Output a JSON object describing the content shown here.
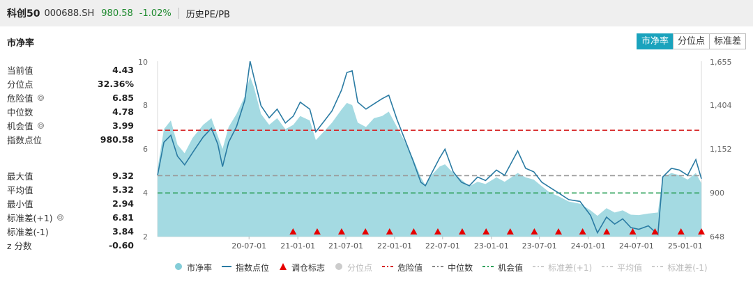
{
  "header": {
    "name": "科创50",
    "code": "000688.SH",
    "price": "980.58",
    "change": "-1.02%",
    "tab": "历史PE/PB"
  },
  "metric_title": "市净率",
  "tabs": [
    {
      "label": "市净率",
      "active": true
    },
    {
      "label": "分位点",
      "active": false
    },
    {
      "label": "标准差",
      "active": false
    }
  ],
  "stats_top": [
    {
      "label": "当前值",
      "value": "4.43",
      "gear": false
    },
    {
      "label": "分位点",
      "value": "32.36%",
      "gear": false
    },
    {
      "label": "危险值",
      "value": "6.85",
      "gear": true
    },
    {
      "label": "中位数",
      "value": "4.78",
      "gear": false
    },
    {
      "label": "机会值",
      "value": "3.99",
      "gear": true
    },
    {
      "label": "指数点位",
      "value": "980.58",
      "gear": false
    }
  ],
  "stats_bottom": [
    {
      "label": "最大值",
      "value": "9.32",
      "gear": false
    },
    {
      "label": "平均值",
      "value": "5.32",
      "gear": false
    },
    {
      "label": "最小值",
      "value": "2.94",
      "gear": false
    },
    {
      "label": "标准差(+1)",
      "value": "6.81",
      "gear": true
    },
    {
      "label": "标准差(-1)",
      "value": "3.84",
      "gear": false
    },
    {
      "label": "z 分数",
      "value": "-0.60",
      "gear": false
    }
  ],
  "legend": [
    {
      "label": "市净率",
      "type": "dot",
      "color": "#84cdd8",
      "dim": false
    },
    {
      "label": "指数点位",
      "type": "line",
      "color": "#2a7ba3",
      "dim": false
    },
    {
      "label": "调仓标志",
      "type": "triangle",
      "color": "#e60000",
      "dim": false
    },
    {
      "label": "分位点",
      "type": "dot",
      "color": "#cccccc",
      "dim": true
    },
    {
      "label": "危险值",
      "type": "dash",
      "color": "#d62728",
      "dim": false
    },
    {
      "label": "中位数",
      "type": "dash",
      "color": "#888888",
      "dim": false
    },
    {
      "label": "机会值",
      "type": "dash",
      "color": "#2ca05a",
      "dim": false
    },
    {
      "label": "标准差(+1)",
      "type": "dash",
      "color": "#cccccc",
      "dim": true
    },
    {
      "label": "平均值",
      "type": "dash",
      "color": "#cccccc",
      "dim": true
    },
    {
      "label": "标准差(-1)",
      "type": "dash",
      "color": "#cccccc",
      "dim": true
    }
  ],
  "chart_data": {
    "type": "area",
    "x_range": [
      "2019-07-22",
      "2025-03-03"
    ],
    "x_ticks": [
      "20-07-01",
      "21-01-01",
      "21-07-01",
      "22-01-01",
      "22-07-01",
      "23-01-01",
      "23-07-01",
      "24-01-01",
      "24-07-01",
      "25-01-01"
    ],
    "left_axis": {
      "ticks": [
        "2",
        "4",
        "6",
        "8",
        "10"
      ],
      "range": [
        2,
        10
      ]
    },
    "right_axis": {
      "ticks": [
        "648",
        "900",
        "1,152",
        "1,404",
        "1,655"
      ],
      "range": [
        648,
        1655
      ]
    },
    "reference_lines": {
      "danger": 6.85,
      "median": 4.78,
      "opportunity": 3.99
    },
    "series": [
      {
        "name": "市净率",
        "axis": "left",
        "points": [
          [
            "2019-07-22",
            5.1
          ],
          [
            "2019-08-15",
            6.9
          ],
          [
            "2019-09-10",
            7.3
          ],
          [
            "2019-10-05",
            6.2
          ],
          [
            "2019-11-01",
            5.8
          ],
          [
            "2019-12-01",
            6.5
          ],
          [
            "2020-01-10",
            7.1
          ],
          [
            "2020-02-10",
            7.4
          ],
          [
            "2020-03-05",
            6.6
          ],
          [
            "2020-03-23",
            6.0
          ],
          [
            "2020-04-15",
            7.0
          ],
          [
            "2020-05-15",
            7.6
          ],
          [
            "2020-06-15",
            8.4
          ],
          [
            "2020-07-05",
            9.3
          ],
          [
            "2020-07-20",
            8.8
          ],
          [
            "2020-08-15",
            7.6
          ],
          [
            "2020-09-15",
            7.1
          ],
          [
            "2020-10-15",
            7.4
          ],
          [
            "2020-11-15",
            6.9
          ],
          [
            "2020-12-15",
            7.1
          ],
          [
            "2021-01-10",
            7.5
          ],
          [
            "2021-02-15",
            7.3
          ],
          [
            "2021-03-10",
            6.4
          ],
          [
            "2021-04-10",
            6.8
          ],
          [
            "2021-05-10",
            7.2
          ],
          [
            "2021-06-15",
            7.8
          ],
          [
            "2021-07-05",
            8.1
          ],
          [
            "2021-07-25",
            8.0
          ],
          [
            "2021-08-15",
            7.2
          ],
          [
            "2021-09-15",
            7.0
          ],
          [
            "2021-10-15",
            7.4
          ],
          [
            "2021-11-15",
            7.5
          ],
          [
            "2021-12-10",
            7.7
          ],
          [
            "2022-01-10",
            7.0
          ],
          [
            "2022-02-10",
            6.3
          ],
          [
            "2022-03-10",
            5.6
          ],
          [
            "2022-04-10",
            4.7
          ],
          [
            "2022-04-27",
            4.35
          ],
          [
            "2022-05-20",
            4.8
          ],
          [
            "2022-06-20",
            5.2
          ],
          [
            "2022-07-10",
            5.3
          ],
          [
            "2022-08-10",
            4.9
          ],
          [
            "2022-09-10",
            4.6
          ],
          [
            "2022-10-10",
            4.3
          ],
          [
            "2022-11-10",
            4.5
          ],
          [
            "2022-12-10",
            4.4
          ],
          [
            "2023-01-20",
            4.7
          ],
          [
            "2023-02-20",
            4.5
          ],
          [
            "2023-04-10",
            4.9
          ],
          [
            "2023-05-10",
            4.7
          ],
          [
            "2023-06-10",
            4.6
          ],
          [
            "2023-07-10",
            4.3
          ],
          [
            "2023-08-10",
            4.0
          ],
          [
            "2023-09-10",
            3.85
          ],
          [
            "2023-10-20",
            3.6
          ],
          [
            "2023-12-01",
            3.5
          ],
          [
            "2024-01-10",
            3.2
          ],
          [
            "2024-02-05",
            2.95
          ],
          [
            "2024-03-10",
            3.3
          ],
          [
            "2024-04-10",
            3.1
          ],
          [
            "2024-05-10",
            3.2
          ],
          [
            "2024-06-10",
            3.0
          ],
          [
            "2024-07-10",
            2.98
          ],
          [
            "2024-08-15",
            3.05
          ],
          [
            "2024-09-20",
            3.1
          ],
          [
            "2024-10-08",
            4.7
          ],
          [
            "2024-11-10",
            4.9
          ],
          [
            "2024-12-10",
            4.8
          ],
          [
            "2025-01-10",
            4.6
          ],
          [
            "2025-02-10",
            4.9
          ],
          [
            "2025-03-03",
            4.43
          ]
        ]
      },
      {
        "name": "指数点位",
        "axis": "right",
        "points": [
          [
            "2019-07-22",
            1000
          ],
          [
            "2019-08-15",
            1190
          ],
          [
            "2019-09-10",
            1230
          ],
          [
            "2019-10-05",
            1110
          ],
          [
            "2019-11-01",
            1060
          ],
          [
            "2019-12-01",
            1130
          ],
          [
            "2020-01-10",
            1220
          ],
          [
            "2020-02-10",
            1270
          ],
          [
            "2020-03-05",
            1180
          ],
          [
            "2020-03-23",
            1050
          ],
          [
            "2020-04-15",
            1190
          ],
          [
            "2020-05-15",
            1280
          ],
          [
            "2020-06-15",
            1430
          ],
          [
            "2020-07-05",
            1655
          ],
          [
            "2020-07-20",
            1560
          ],
          [
            "2020-08-15",
            1400
          ],
          [
            "2020-09-15",
            1330
          ],
          [
            "2020-10-15",
            1380
          ],
          [
            "2020-11-15",
            1300
          ],
          [
            "2020-12-15",
            1340
          ],
          [
            "2021-01-10",
            1420
          ],
          [
            "2021-02-15",
            1380
          ],
          [
            "2021-03-10",
            1250
          ],
          [
            "2021-04-10",
            1310
          ],
          [
            "2021-05-10",
            1370
          ],
          [
            "2021-06-15",
            1490
          ],
          [
            "2021-07-05",
            1590
          ],
          [
            "2021-07-25",
            1600
          ],
          [
            "2021-08-15",
            1420
          ],
          [
            "2021-09-15",
            1380
          ],
          [
            "2021-10-15",
            1410
          ],
          [
            "2021-11-15",
            1440
          ],
          [
            "2021-12-10",
            1460
          ],
          [
            "2022-01-10",
            1320
          ],
          [
            "2022-02-10",
            1200
          ],
          [
            "2022-03-10",
            1090
          ],
          [
            "2022-04-10",
            960
          ],
          [
            "2022-04-27",
            940
          ],
          [
            "2022-05-20",
            1010
          ],
          [
            "2022-06-20",
            1100
          ],
          [
            "2022-07-10",
            1150
          ],
          [
            "2022-08-10",
            1020
          ],
          [
            "2022-09-10",
            960
          ],
          [
            "2022-10-10",
            940
          ],
          [
            "2022-11-10",
            990
          ],
          [
            "2022-12-10",
            970
          ],
          [
            "2023-01-20",
            1030
          ],
          [
            "2023-02-20",
            1000
          ],
          [
            "2023-04-10",
            1140
          ],
          [
            "2023-05-10",
            1040
          ],
          [
            "2023-06-10",
            1020
          ],
          [
            "2023-07-10",
            960
          ],
          [
            "2023-08-10",
            930
          ],
          [
            "2023-09-10",
            900
          ],
          [
            "2023-10-20",
            860
          ],
          [
            "2023-12-01",
            850
          ],
          [
            "2024-01-10",
            770
          ],
          [
            "2024-02-05",
            670
          ],
          [
            "2024-03-10",
            760
          ],
          [
            "2024-04-10",
            720
          ],
          [
            "2024-05-10",
            750
          ],
          [
            "2024-06-10",
            700
          ],
          [
            "2024-07-10",
            690
          ],
          [
            "2024-08-15",
            710
          ],
          [
            "2024-09-20",
            660
          ],
          [
            "2024-10-08",
            990
          ],
          [
            "2024-11-10",
            1040
          ],
          [
            "2024-12-10",
            1030
          ],
          [
            "2025-01-10",
            1000
          ],
          [
            "2025-02-10",
            1090
          ],
          [
            "2025-03-03",
            980.58
          ]
        ]
      }
    ],
    "rebalance_markers": [
      "2020-12-14",
      "2021-03-15",
      "2021-06-15",
      "2021-09-13",
      "2021-12-13",
      "2022-03-14",
      "2022-06-13",
      "2022-09-13",
      "2022-12-12",
      "2023-03-13",
      "2023-06-12",
      "2023-09-11",
      "2023-12-11",
      "2024-03-11",
      "2024-06-17",
      "2024-09-09",
      "2024-12-16",
      "2025-03-03"
    ]
  }
}
